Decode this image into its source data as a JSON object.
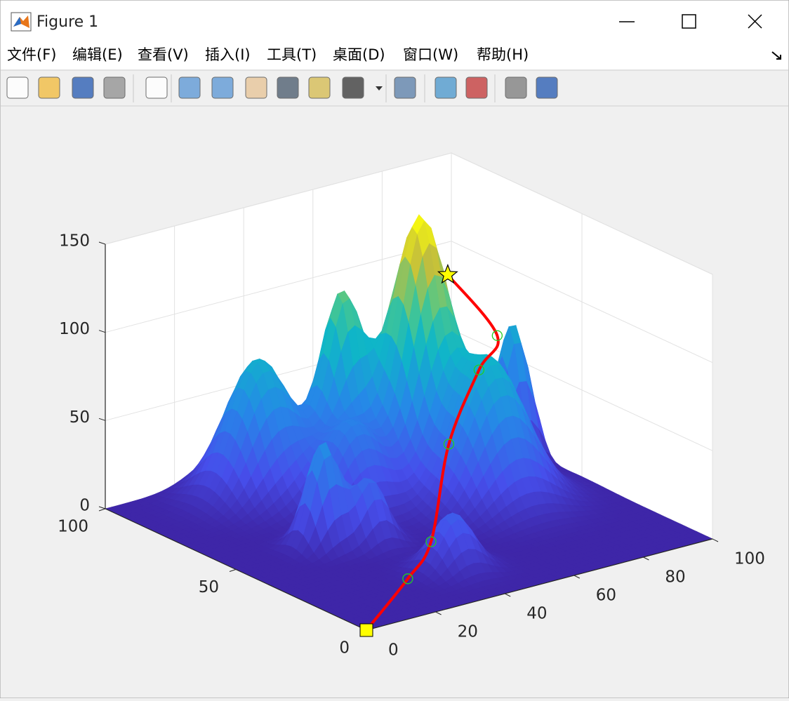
{
  "window": {
    "title": "Figure 1",
    "menu": [
      "文件(F)",
      "编辑(E)",
      "查看(V)",
      "插入(I)",
      "工具(T)",
      "桌面(D)",
      "窗口(W)",
      "帮助(H)"
    ]
  },
  "chart_data": {
    "type": "surface3d",
    "xlim": [
      0,
      100
    ],
    "ylim": [
      0,
      100
    ],
    "zlim": [
      0,
      150
    ],
    "xticks": [
      0,
      20,
      40,
      60,
      80,
      100
    ],
    "yticks": [
      0,
      50,
      100
    ],
    "zticks": [
      0,
      50,
      100,
      150
    ],
    "grid": true,
    "colormap": "parula",
    "peaks": [
      {
        "x": 68,
        "y": 70,
        "height": 146,
        "spread": 7
      },
      {
        "x": 53,
        "y": 80,
        "height": 100,
        "spread": 5
      },
      {
        "x": 33,
        "y": 85,
        "height": 78,
        "spread": 8
      },
      {
        "x": 95,
        "y": 70,
        "height": 77,
        "spread": 4
      },
      {
        "x": 73,
        "y": 50,
        "height": 81,
        "spread": 9
      },
      {
        "x": 25,
        "y": 50,
        "height": 59,
        "spread": 4
      },
      {
        "x": 35,
        "y": 45,
        "height": 36,
        "spread": 4
      },
      {
        "x": 40,
        "y": 20,
        "height": 32,
        "spread": 5
      },
      {
        "x": 45,
        "y": 65,
        "height": 48,
        "spread": 7
      }
    ],
    "path": {
      "color": "#ff0000",
      "x": [
        0,
        21,
        33,
        54,
        68,
        71,
        65
      ],
      "y": [
        0,
        12,
        19,
        40,
        47,
        44,
        55
      ],
      "z": [
        0,
        10,
        20,
        50,
        80,
        100,
        130
      ]
    },
    "waypoint_color": "#22cc22",
    "start_color": "#ffff00",
    "goal_color": "#ffff00"
  }
}
